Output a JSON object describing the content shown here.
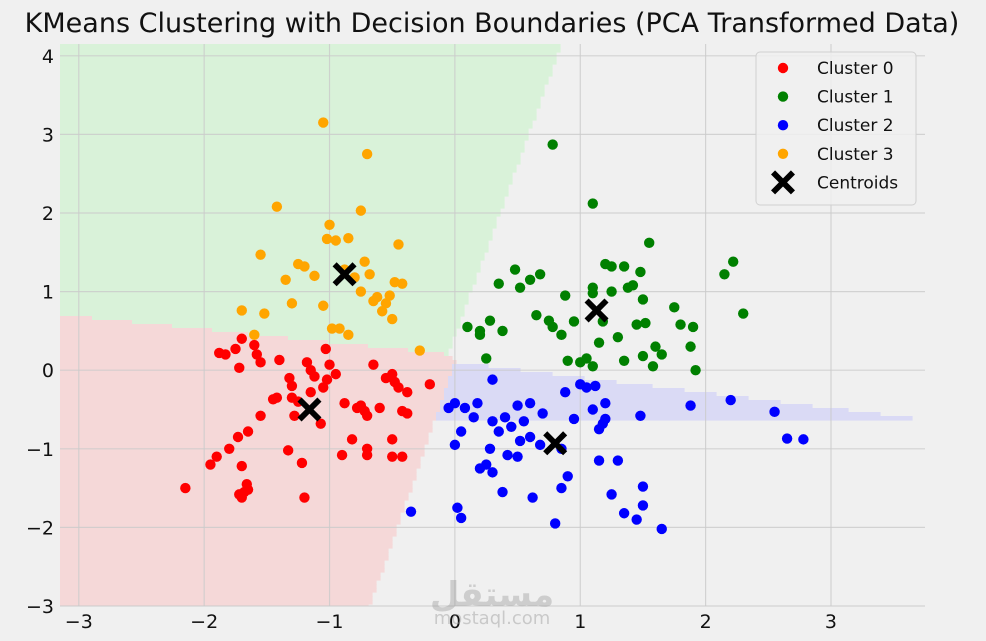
{
  "chart_data": {
    "type": "scatter",
    "title": "KMeans Clustering with Decision Boundaries (PCA Transformed Data)",
    "xlabel": "",
    "ylabel": "",
    "xlim": [
      -3.15,
      3.75
    ],
    "ylim": [
      -3,
      4.15
    ],
    "xticks": [
      -3,
      -2,
      -1,
      0,
      1,
      2,
      3
    ],
    "yticks": [
      -3,
      -2,
      -1,
      0,
      1,
      2,
      3,
      4
    ],
    "xtick_labels": [
      "−3",
      "−2",
      "−1",
      "0",
      "1",
      "2",
      "3"
    ],
    "ytick_labels": [
      "−3",
      "−2",
      "−1",
      "0",
      "1",
      "2",
      "3",
      "4"
    ],
    "grid": true,
    "legend_position": "top-right",
    "background_color": "#f0f0f0",
    "region_colors": [
      "#f5d8d8",
      "#d9f2d9",
      "#dadaf5",
      "#f3e6a8"
    ],
    "series": [
      {
        "name": "Cluster 0",
        "color": "#ff0000",
        "points": [
          [
            -2.15,
            -1.5
          ],
          [
            -1.95,
            -1.2
          ],
          [
            -1.9,
            -1.1
          ],
          [
            -1.8,
            -1.0
          ],
          [
            -1.72,
            -1.58
          ],
          [
            -1.7,
            -1.62
          ],
          [
            -1.68,
            -1.55
          ],
          [
            -1.66,
            -1.45
          ],
          [
            -1.65,
            -1.52
          ],
          [
            -1.7,
            -1.22
          ],
          [
            -1.73,
            -0.85
          ],
          [
            -1.88,
            0.22
          ],
          [
            -1.83,
            0.2
          ],
          [
            -1.75,
            0.27
          ],
          [
            -1.7,
            0.4
          ],
          [
            -1.72,
            0.03
          ],
          [
            -1.6,
            0.32
          ],
          [
            -1.58,
            0.2
          ],
          [
            -1.55,
            0.1
          ],
          [
            -1.45,
            -0.37
          ],
          [
            -1.4,
            0.13
          ],
          [
            -1.32,
            -0.1
          ],
          [
            -1.3,
            -0.2
          ],
          [
            -1.3,
            -0.35
          ],
          [
            -1.33,
            -1.02
          ],
          [
            -1.28,
            -0.58
          ],
          [
            -1.25,
            -0.4
          ],
          [
            -1.22,
            -1.18
          ],
          [
            -1.2,
            -1.62
          ],
          [
            -1.18,
            0.1
          ],
          [
            -1.15,
            -0.28
          ],
          [
            -1.15,
            0.0
          ],
          [
            -1.12,
            -0.08
          ],
          [
            -1.07,
            -0.68
          ],
          [
            -1.05,
            -0.22
          ],
          [
            -1.0,
            0.07
          ],
          [
            -1.02,
            -0.12
          ],
          [
            -0.95,
            -0.05
          ],
          [
            -1.03,
            0.27
          ],
          [
            -0.9,
            -1.08
          ],
          [
            -0.88,
            -0.42
          ],
          [
            -0.82,
            -0.88
          ],
          [
            -0.78,
            -0.48
          ],
          [
            -0.75,
            -0.45
          ],
          [
            -0.72,
            -0.52
          ],
          [
            -0.7,
            -1.0
          ],
          [
            -0.7,
            -1.08
          ],
          [
            -0.7,
            -0.58
          ],
          [
            -0.65,
            0.07
          ],
          [
            -0.6,
            -0.48
          ],
          [
            -0.55,
            -0.1
          ],
          [
            -0.5,
            -1.1
          ],
          [
            -0.5,
            -0.88
          ],
          [
            -0.48,
            -0.15
          ],
          [
            -0.45,
            -0.22
          ],
          [
            -0.42,
            -1.1
          ],
          [
            -0.42,
            -0.52
          ],
          [
            -0.38,
            -0.55
          ],
          [
            -0.38,
            -0.28
          ],
          [
            -0.2,
            -0.18
          ],
          [
            -0.5,
            -0.05
          ],
          [
            -1.42,
            -0.35
          ],
          [
            -1.55,
            -0.58
          ],
          [
            -1.65,
            -0.78
          ]
        ]
      },
      {
        "name": "Cluster 1",
        "color": "#008000",
        "points": [
          [
            0.1,
            0.55
          ],
          [
            0.2,
            0.5
          ],
          [
            0.2,
            0.45
          ],
          [
            0.25,
            0.15
          ],
          [
            0.28,
            0.63
          ],
          [
            0.35,
            1.1
          ],
          [
            0.38,
            0.5
          ],
          [
            0.48,
            1.28
          ],
          [
            0.52,
            1.05
          ],
          [
            0.6,
            1.15
          ],
          [
            0.65,
            0.7
          ],
          [
            0.68,
            1.22
          ],
          [
            0.75,
            0.63
          ],
          [
            0.78,
            0.55
          ],
          [
            0.78,
            2.87
          ],
          [
            0.85,
            0.45
          ],
          [
            0.88,
            0.95
          ],
          [
            0.9,
            0.12
          ],
          [
            0.95,
            0.62
          ],
          [
            1.0,
            0.1
          ],
          [
            1.05,
            0.15
          ],
          [
            1.1,
            0.05
          ],
          [
            1.1,
            0.98
          ],
          [
            1.1,
            1.05
          ],
          [
            1.1,
            2.12
          ],
          [
            1.15,
            0.35
          ],
          [
            1.18,
            0.62
          ],
          [
            1.2,
            1.35
          ],
          [
            1.25,
            1.32
          ],
          [
            1.25,
            1.0
          ],
          [
            1.3,
            0.42
          ],
          [
            1.35,
            1.32
          ],
          [
            1.38,
            1.05
          ],
          [
            1.42,
            1.08
          ],
          [
            1.45,
            0.58
          ],
          [
            1.48,
            1.25
          ],
          [
            1.5,
            0.18
          ],
          [
            1.5,
            0.9
          ],
          [
            1.52,
            0.6
          ],
          [
            1.55,
            1.62
          ],
          [
            1.6,
            0.3
          ],
          [
            1.65,
            0.2
          ],
          [
            1.75,
            0.8
          ],
          [
            1.8,
            0.58
          ],
          [
            1.88,
            0.3
          ],
          [
            1.9,
            0.55
          ],
          [
            1.92,
            0.0
          ],
          [
            2.15,
            1.22
          ],
          [
            2.22,
            1.38
          ],
          [
            2.3,
            0.72
          ],
          [
            1.58,
            0.05
          ],
          [
            1.35,
            0.12
          ]
        ]
      },
      {
        "name": "Cluster 2",
        "color": "#0000ff",
        "points": [
          [
            -0.35,
            -1.8
          ],
          [
            -0.05,
            -0.48
          ],
          [
            0.0,
            -0.95
          ],
          [
            0.0,
            -0.42
          ],
          [
            0.02,
            -1.75
          ],
          [
            0.05,
            -1.88
          ],
          [
            0.05,
            -0.78
          ],
          [
            0.08,
            -0.48
          ],
          [
            0.15,
            -0.6
          ],
          [
            0.18,
            -0.42
          ],
          [
            0.2,
            -1.25
          ],
          [
            0.25,
            -1.2
          ],
          [
            0.28,
            -1.0
          ],
          [
            0.3,
            -0.65
          ],
          [
            0.3,
            -1.3
          ],
          [
            0.3,
            -0.12
          ],
          [
            0.35,
            -0.78
          ],
          [
            0.38,
            -1.55
          ],
          [
            0.4,
            -0.6
          ],
          [
            0.42,
            -1.08
          ],
          [
            0.45,
            -0.72
          ],
          [
            0.5,
            -0.45
          ],
          [
            0.5,
            -1.1
          ],
          [
            0.52,
            -0.9
          ],
          [
            0.55,
            -0.65
          ],
          [
            0.6,
            -0.85
          ],
          [
            0.6,
            -0.42
          ],
          [
            0.62,
            -1.62
          ],
          [
            0.68,
            -0.95
          ],
          [
            0.7,
            -0.55
          ],
          [
            0.8,
            -1.95
          ],
          [
            0.85,
            -1.5
          ],
          [
            0.85,
            -1.0
          ],
          [
            0.88,
            -0.28
          ],
          [
            0.9,
            -1.35
          ],
          [
            0.95,
            -0.62
          ],
          [
            1.0,
            -0.18
          ],
          [
            1.05,
            -0.22
          ],
          [
            1.1,
            -0.5
          ],
          [
            1.12,
            -0.2
          ],
          [
            1.15,
            -1.15
          ],
          [
            1.15,
            -0.75
          ],
          [
            1.18,
            -0.68
          ],
          [
            1.2,
            -0.62
          ],
          [
            1.2,
            -0.42
          ],
          [
            1.25,
            -1.58
          ],
          [
            1.3,
            -1.15
          ],
          [
            1.35,
            -1.82
          ],
          [
            1.45,
            -1.9
          ],
          [
            1.48,
            -0.58
          ],
          [
            1.5,
            -1.48
          ],
          [
            1.5,
            -1.72
          ],
          [
            1.65,
            -2.02
          ],
          [
            1.88,
            -0.45
          ],
          [
            2.2,
            -0.38
          ],
          [
            2.55,
            -0.53
          ],
          [
            2.65,
            -0.87
          ],
          [
            2.78,
            -0.88
          ]
        ]
      },
      {
        "name": "Cluster 3",
        "color": "#ffa500",
        "points": [
          [
            -1.7,
            0.76
          ],
          [
            -1.6,
            0.45
          ],
          [
            -1.55,
            1.47
          ],
          [
            -1.52,
            0.72
          ],
          [
            -1.42,
            2.08
          ],
          [
            -1.35,
            1.15
          ],
          [
            -1.3,
            0.85
          ],
          [
            -1.25,
            1.35
          ],
          [
            -1.2,
            1.32
          ],
          [
            -1.12,
            1.2
          ],
          [
            -1.05,
            0.82
          ],
          [
            -1.05,
            3.15
          ],
          [
            -1.02,
            1.67
          ],
          [
            -1.0,
            1.85
          ],
          [
            -0.98,
            0.53
          ],
          [
            -0.95,
            1.65
          ],
          [
            -0.92,
            0.53
          ],
          [
            -0.88,
            1.28
          ],
          [
            -0.85,
            0.45
          ],
          [
            -0.85,
            1.68
          ],
          [
            -0.8,
            1.18
          ],
          [
            -0.75,
            2.03
          ],
          [
            -0.72,
            1.38
          ],
          [
            -0.7,
            2.75
          ],
          [
            -0.68,
            1.22
          ],
          [
            -0.65,
            0.88
          ],
          [
            -0.62,
            0.93
          ],
          [
            -0.58,
            0.75
          ],
          [
            -0.55,
            0.85
          ],
          [
            -0.5,
            0.65
          ],
          [
            -0.48,
            1.12
          ],
          [
            -0.45,
            1.6
          ],
          [
            -0.42,
            1.1
          ],
          [
            -0.28,
            0.25
          ],
          [
            -0.52,
            0.95
          ],
          [
            -0.75,
            1.0
          ]
        ]
      }
    ],
    "centroids": {
      "name": "Centroids",
      "color": "#000000",
      "points": [
        [
          -1.16,
          -0.5
        ],
        [
          -0.88,
          1.22
        ],
        [
          0.8,
          -0.93
        ],
        [
          1.13,
          0.76
        ]
      ]
    }
  },
  "watermark": {
    "arabic": "مستقل",
    "latin": "mostaql.com"
  }
}
